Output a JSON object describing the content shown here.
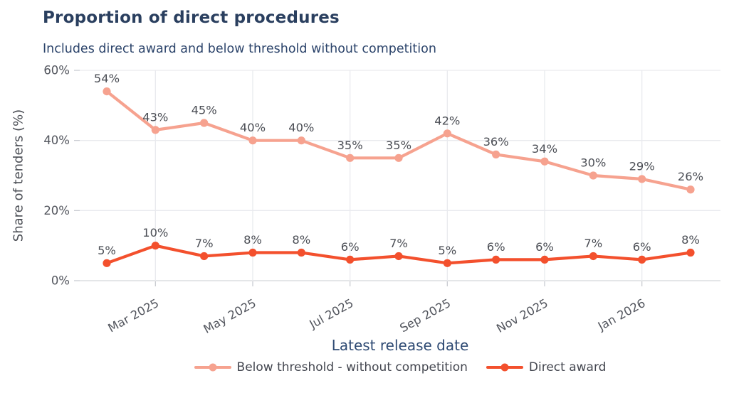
{
  "chart_data": {
    "type": "line",
    "title": "Proportion of direct procedures",
    "subtitle": "Includes direct award and below threshold without competition",
    "xlabel": "Latest release date",
    "ylabel": "Share of tenders (%)",
    "x_tick_labels": [
      "Mar 2025",
      "May 2025",
      "Jul 2025",
      "Sep 2025",
      "Nov 2025",
      "Jan 2026"
    ],
    "x_tick_indices": [
      1,
      3,
      5,
      7,
      9,
      11
    ],
    "n_points": 13,
    "y_ticks": [
      0,
      20,
      40,
      60
    ],
    "ylim": [
      0,
      60
    ],
    "unit_suffix": "%",
    "grid": true,
    "legend_position": "bottom-center",
    "series": [
      {
        "name": "Below threshold - without competition",
        "color": "#f6a28f",
        "values": [
          54,
          43,
          45,
          40,
          40,
          35,
          35,
          42,
          36,
          34,
          30,
          29,
          26
        ]
      },
      {
        "name": "Direct award",
        "color": "#f3502d",
        "values": [
          5,
          10,
          7,
          8,
          8,
          6,
          7,
          5,
          6,
          6,
          7,
          6,
          8
        ]
      }
    ],
    "style": {
      "title_color": "#2a3f5f",
      "subtitle_color": "#2c446b",
      "axis_title_color": "#2e4a73",
      "y_axis_title_color": "#4b4e55",
      "tick_color": "#53565e",
      "data_label_color": "#4b4e55",
      "legend_text_color": "#444750",
      "grid_color": "#e9eaee",
      "zero_line_color": "#d4d6da",
      "tick_mark_color": "#c9ccd2",
      "background": "#ffffff"
    }
  }
}
